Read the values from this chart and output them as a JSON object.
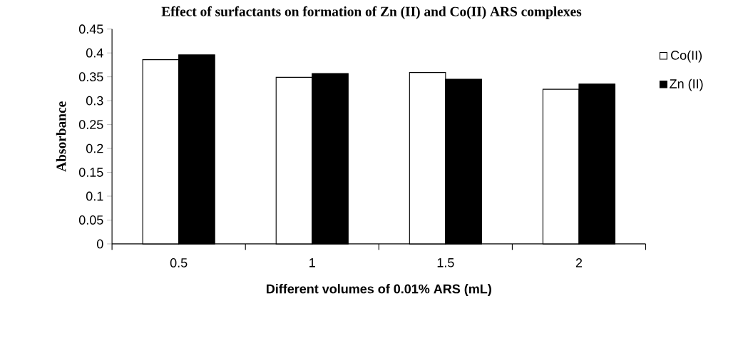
{
  "chart_data": {
    "type": "bar",
    "title": "Effect of surfactants on formation of Zn (II) and Co(II) ARS complexes",
    "xlabel": "Different volumes of 0.01% ARS (mL)",
    "ylabel": "Absorbance",
    "categories": [
      "0.5",
      "1",
      "1.5",
      "2"
    ],
    "series": [
      {
        "name": "Co(II)",
        "color": "#ffffff",
        "values": [
          0.386,
          0.349,
          0.359,
          0.324
        ]
      },
      {
        "name": "Zn (II)",
        "color": "#000000",
        "values": [
          0.396,
          0.357,
          0.345,
          0.335
        ]
      }
    ],
    "ylim": [
      0,
      0.45
    ],
    "yticks": [
      0,
      0.05,
      0.1,
      0.15,
      0.2,
      0.25,
      0.3,
      0.35,
      0.4,
      0.45
    ],
    "legend": "right"
  }
}
